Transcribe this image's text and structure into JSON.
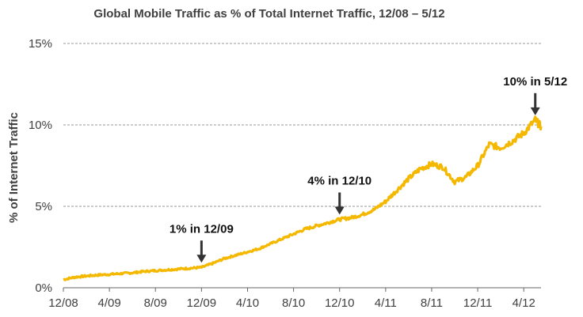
{
  "chart_data": {
    "type": "line",
    "title": "Global Mobile Traffic as % of Total Internet Traffic, 12/08 – 5/12",
    "ylabel": "% of Internet Traffic",
    "xlabel": "",
    "ylim": [
      0,
      15
    ],
    "yticks": [
      0,
      5,
      10,
      15
    ],
    "ytick_labels": [
      "0%",
      "5%",
      "10%",
      "15%"
    ],
    "xticks": [
      0,
      4,
      8,
      12,
      16,
      20,
      24,
      28,
      32,
      36,
      40
    ],
    "xtick_labels": [
      "12/08",
      "4/09",
      "8/09",
      "12/09",
      "4/10",
      "8/10",
      "12/10",
      "4/11",
      "8/11",
      "12/11",
      "4/12"
    ],
    "xlim": [
      0,
      41.5
    ],
    "grid": "horizontal dashed",
    "legend": "none",
    "series": [
      {
        "color": "#F5B800",
        "points": [
          [
            0,
            0.5
          ],
          [
            1,
            0.65
          ],
          [
            2,
            0.72
          ],
          [
            3,
            0.78
          ],
          [
            4,
            0.82
          ],
          [
            5,
            0.87
          ],
          [
            6,
            0.92
          ],
          [
            7,
            1.0
          ],
          [
            8,
            1.05
          ],
          [
            9,
            1.1
          ],
          [
            10,
            1.15
          ],
          [
            11,
            1.2
          ],
          [
            12,
            1.25
          ],
          [
            13,
            1.5
          ],
          [
            14,
            1.8
          ],
          [
            15,
            2.0
          ],
          [
            16,
            2.2
          ],
          [
            17,
            2.4
          ],
          [
            18,
            2.7
          ],
          [
            19,
            3.0
          ],
          [
            20,
            3.3
          ],
          [
            21,
            3.6
          ],
          [
            22,
            3.8
          ],
          [
            23,
            4.0
          ],
          [
            24,
            4.2
          ],
          [
            25,
            4.3
          ],
          [
            26,
            4.5
          ],
          [
            27,
            4.8
          ],
          [
            28,
            5.3
          ],
          [
            29,
            6.0
          ],
          [
            30,
            6.7
          ],
          [
            31,
            7.3
          ],
          [
            32,
            7.6
          ],
          [
            33,
            7.4
          ],
          [
            34,
            6.5
          ],
          [
            35,
            6.8
          ],
          [
            36,
            7.5
          ],
          [
            37,
            8.8
          ],
          [
            38,
            8.6
          ],
          [
            39,
            9.0
          ],
          [
            40,
            9.5
          ],
          [
            41,
            10.3
          ],
          [
            41.5,
            9.9
          ]
        ]
      }
    ],
    "annotations": [
      {
        "text": "1% in 12/09",
        "x": 12,
        "y": 1.25
      },
      {
        "text": "4% in 12/10",
        "x": 24,
        "y": 4.2
      },
      {
        "text": "10% in 5/12",
        "x": 41,
        "y": 10.3
      }
    ],
    "arrow_color": "#333333",
    "grid_color": "#999999",
    "axis_color": "#666666"
  }
}
